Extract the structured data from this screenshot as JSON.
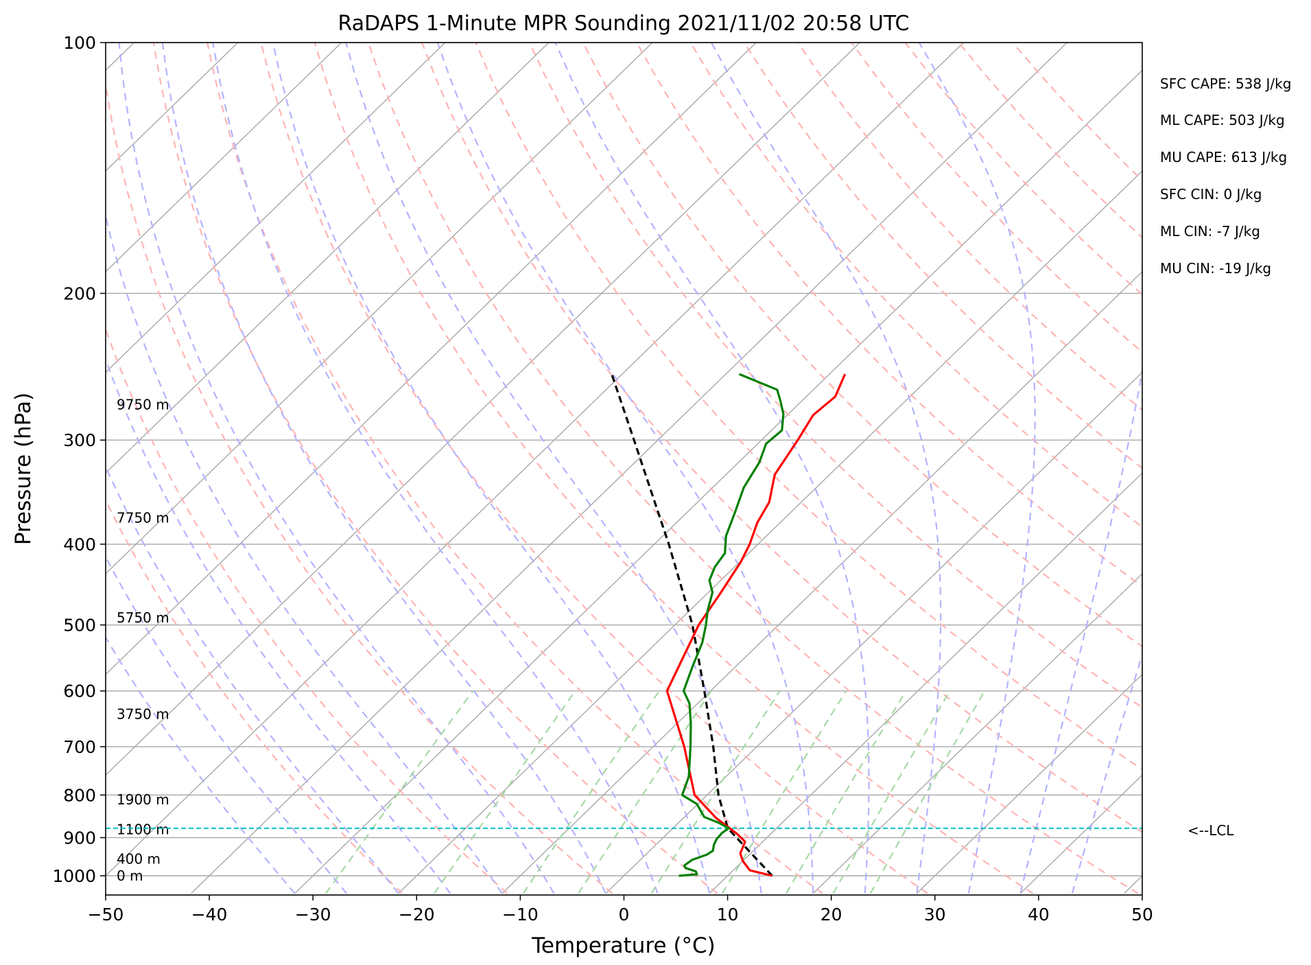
{
  "chart_data": {
    "type": "line",
    "chart_kind": "skew-T log-P sounding",
    "title": "RaDAPS 1-Minute MPR Sounding 2021/11/02 20:58 UTC",
    "xlabel": "Temperature (°C)",
    "ylabel": "Pressure (hPa)",
    "xlim": [
      -50,
      50
    ],
    "ylim_hpa": [
      1050,
      100
    ],
    "y_scale": "log",
    "grid": true,
    "x_ticks": [
      -50,
      -40,
      -30,
      -20,
      -10,
      0,
      10,
      20,
      30,
      40,
      50
    ],
    "x_tick_labels": [
      "−50",
      "−40",
      "−30",
      "−20",
      "−10",
      "0",
      "10",
      "20",
      "30",
      "40",
      "50"
    ],
    "y_ticks": [
      100,
      200,
      300,
      400,
      500,
      600,
      700,
      800,
      900,
      1000
    ],
    "y_tick_labels": [
      "100",
      "200",
      "300",
      "400",
      "500",
      "600",
      "700",
      "800",
      "900",
      "1000"
    ],
    "height_labels": [
      {
        "text": "0 m",
        "p": 1000
      },
      {
        "text": "400 m",
        "p": 955
      },
      {
        "text": "1100 m",
        "p": 880
      },
      {
        "text": "1900 m",
        "p": 810
      },
      {
        "text": "3750 m",
        "p": 640
      },
      {
        "text": "5750 m",
        "p": 490
      },
      {
        "text": "7750 m",
        "p": 372
      },
      {
        "text": "9750 m",
        "p": 272
      }
    ],
    "indices": [
      "SFC CAPE: 538 J/kg",
      "ML CAPE: 503 J/kg",
      "MU CAPE: 613 J/kg",
      "SFC CIN: 0 J/kg",
      "ML CIN: -7 J/kg",
      "MU CIN: -19 J/kg"
    ],
    "lcl": {
      "label": "<--LCL",
      "p": 877
    },
    "colors": {
      "temperature": "#ff0000",
      "dewpoint": "#008000",
      "parcel": "#000000",
      "lcl": "#00bfbf",
      "isotherm": "#a8a8a8",
      "dry_adiabat": "#ffb3b3",
      "moist_adiabat": "#b3b3ff",
      "mixing_ratio": "#a6d8a6"
    },
    "series": [
      {
        "id": "temperature",
        "points": [
          [
            1000,
            14.3
          ],
          [
            985,
            11.6
          ],
          [
            960,
            10.0
          ],
          [
            940,
            9.0
          ],
          [
            910,
            8.3
          ],
          [
            890,
            6.7
          ],
          [
            876,
            5.4
          ],
          [
            853,
            3.2
          ],
          [
            800,
            -1.2
          ],
          [
            700,
            -7.0
          ],
          [
            600,
            -14.2
          ],
          [
            500,
            -17.7
          ],
          [
            460,
            -18.7
          ],
          [
            420,
            -19.9
          ],
          [
            400,
            -20.8
          ],
          [
            377,
            -22.2
          ],
          [
            356,
            -23.1
          ],
          [
            330,
            -25.3
          ],
          [
            300,
            -26.5
          ],
          [
            280,
            -27.5
          ],
          [
            266,
            -27.2
          ],
          [
            250,
            -28.5
          ]
        ]
      },
      {
        "id": "dewpoint",
        "points": [
          [
            1000,
            5.3
          ],
          [
            996,
            6.9
          ],
          [
            988,
            6.5
          ],
          [
            979,
            5.2
          ],
          [
            972,
            4.8
          ],
          [
            957,
            5.0
          ],
          [
            943,
            5.9
          ],
          [
            933,
            6.1
          ],
          [
            918,
            5.6
          ],
          [
            904,
            5.3
          ],
          [
            888,
            5.2
          ],
          [
            877,
            5.4
          ],
          [
            864,
            3.9
          ],
          [
            850,
            1.9
          ],
          [
            820,
            -0.1
          ],
          [
            800,
            -2.4
          ],
          [
            760,
            -3.6
          ],
          [
            700,
            -6.4
          ],
          [
            656,
            -8.7
          ],
          [
            621,
            -10.8
          ],
          [
            600,
            -12.6
          ],
          [
            560,
            -14.2
          ],
          [
            525,
            -15.6
          ],
          [
            500,
            -17.0
          ],
          [
            480,
            -18.3
          ],
          [
            457,
            -19.6
          ],
          [
            442,
            -21.1
          ],
          [
            426,
            -21.9
          ],
          [
            410,
            -22.3
          ],
          [
            391,
            -23.9
          ],
          [
            366,
            -25.4
          ],
          [
            342,
            -27.0
          ],
          [
            319,
            -28.0
          ],
          [
            303,
            -29.2
          ],
          [
            292,
            -29.0
          ],
          [
            279,
            -30.5
          ],
          [
            269,
            -32.1
          ],
          [
            261,
            -33.5
          ],
          [
            250,
            -38.7
          ]
        ]
      },
      {
        "id": "parcel",
        "points": [
          [
            1000,
            14.3
          ],
          [
            877,
            5.3
          ],
          [
            800,
            1.1
          ],
          [
            700,
            -4.2
          ],
          [
            600,
            -10.6
          ],
          [
            500,
            -18.3
          ],
          [
            400,
            -28.6
          ],
          [
            300,
            -42.3
          ],
          [
            250,
            -51.0
          ]
        ]
      }
    ]
  }
}
